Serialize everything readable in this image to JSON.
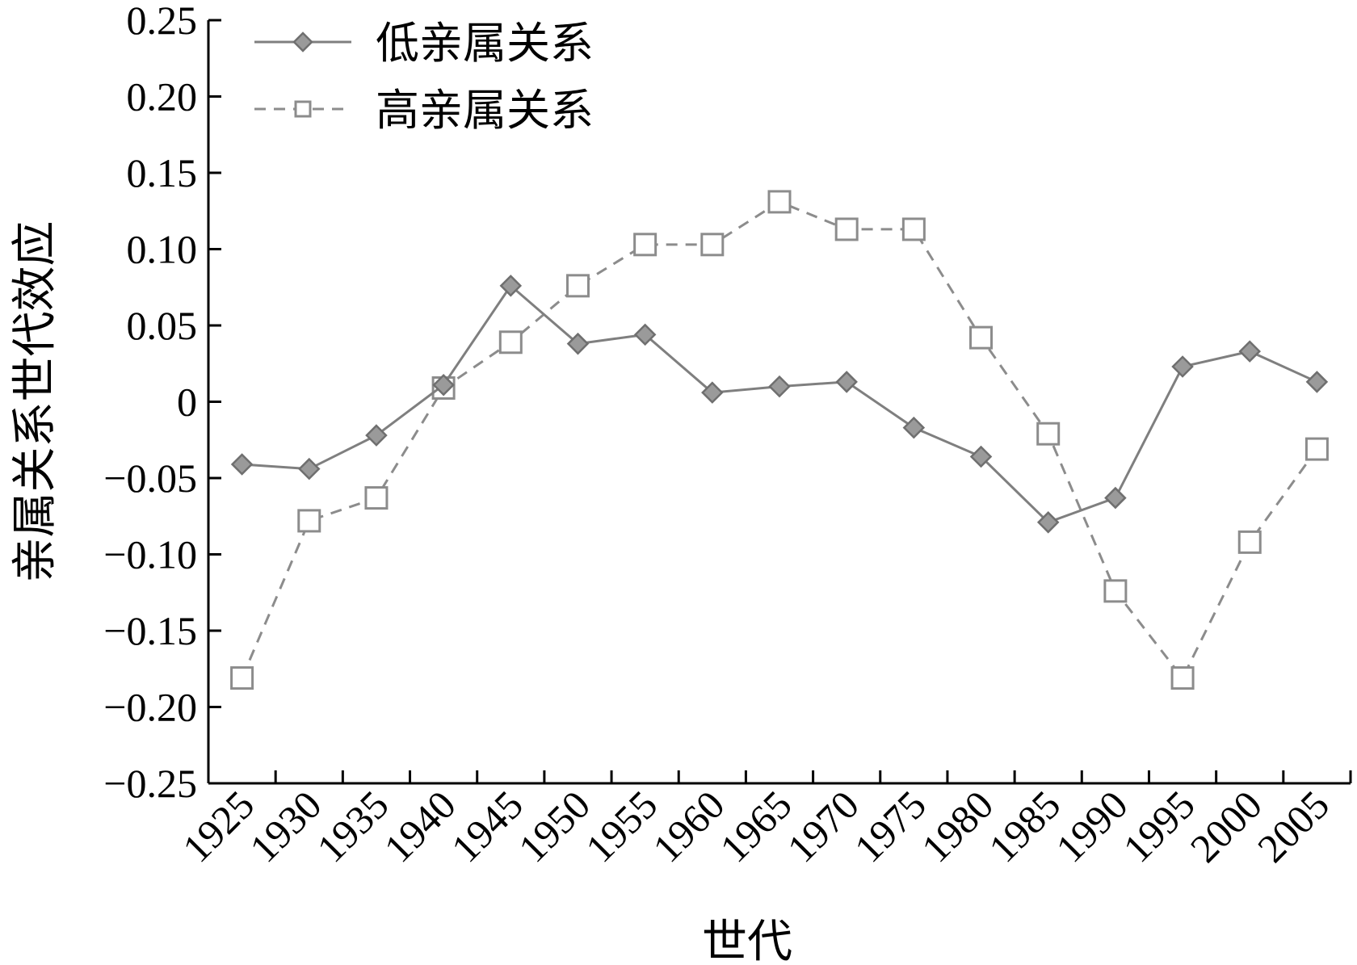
{
  "chart_data": {
    "type": "line",
    "xlabel": "世代",
    "ylabel": "亲属关系世代效应",
    "categories": [
      "1925",
      "1930",
      "1935",
      "1940",
      "1945",
      "1950",
      "1955",
      "1960",
      "1965",
      "1970",
      "1975",
      "1980",
      "1985",
      "1990",
      "1995",
      "2000",
      "2005"
    ],
    "y_ticks": [
      "0.25",
      "0.20",
      "0.15",
      "0.10",
      "0.05",
      "0",
      "−0.05",
      "−0.10",
      "−0.15",
      "−0.20",
      "−0.25"
    ],
    "ylim": [
      -0.25,
      0.25
    ],
    "series": [
      {
        "name": "低亲属关系",
        "style": "solid",
        "marker": "diamond",
        "color": "#7f7f7f",
        "values": [
          -0.041,
          -0.044,
          -0.022,
          0.011,
          0.076,
          0.038,
          0.044,
          0.006,
          0.01,
          0.013,
          -0.017,
          -0.036,
          -0.079,
          -0.063,
          0.023,
          0.033,
          0.013
        ]
      },
      {
        "name": "高亲属关系",
        "style": "dashed",
        "marker": "square",
        "color": "#8c8c8c",
        "values": [
          -0.181,
          -0.078,
          -0.063,
          0.009,
          0.039,
          0.076,
          0.103,
          0.103,
          0.131,
          0.113,
          0.113,
          0.042,
          -0.021,
          -0.124,
          -0.181,
          -0.092,
          -0.031
        ]
      }
    ],
    "legend": "top-left",
    "grid": false
  }
}
